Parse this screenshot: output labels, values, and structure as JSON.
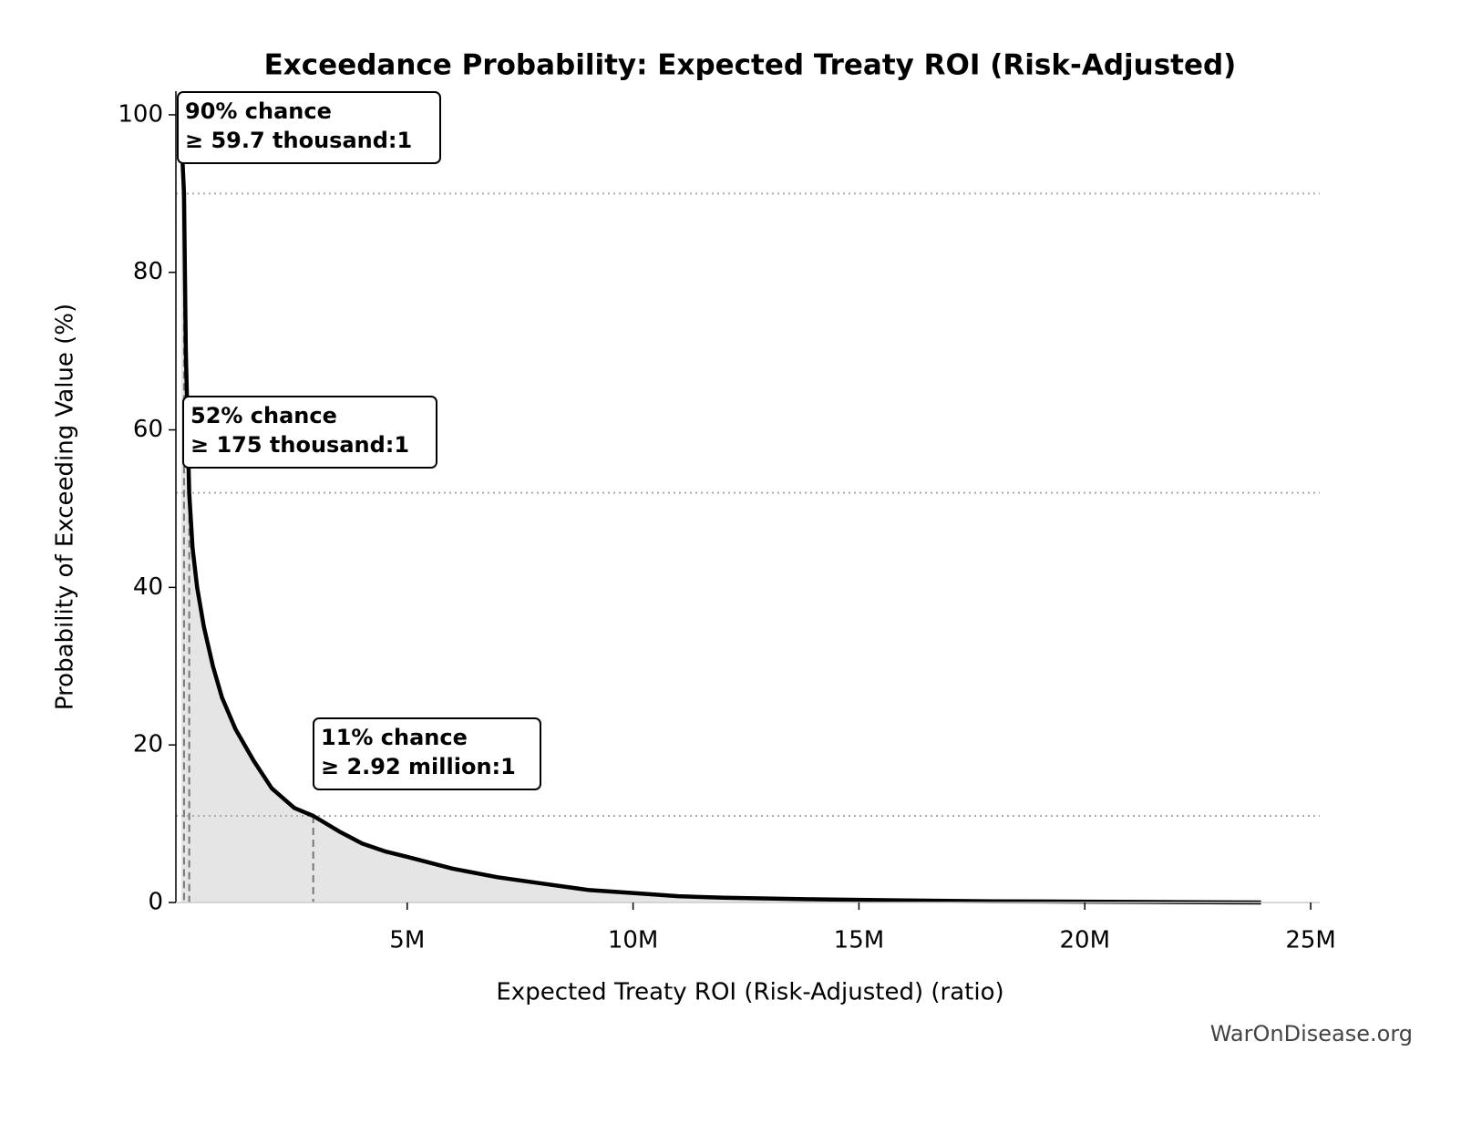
{
  "chart_data": {
    "type": "line",
    "title": "Exceedance Probability: Expected Treaty ROI (Risk-Adjusted)",
    "x_label": "Expected Treaty ROI (Risk-Adjusted) (ratio)",
    "y_label": "Probability of Exceeding Value (%)",
    "watermark": "WarOnDisease.org",
    "series": [
      {
        "color": "#000000",
        "fill": "#e5e5e5",
        "x": [
          0,
          20000,
          59700,
          100000,
          175000,
          250000,
          350000,
          500000,
          700000,
          900000,
          1200000,
          1600000,
          2000000,
          2500000,
          2920000,
          3500000,
          4000000,
          4500000,
          5000000,
          6000000,
          7000000,
          8000000,
          9000000,
          10000000,
          11000000,
          12000000,
          14000000,
          16000000,
          18000000,
          20000000,
          22000000,
          23900000
        ],
        "values": [
          100,
          95,
          90,
          70,
          52,
          45,
          40,
          35,
          30,
          26,
          22,
          18,
          14.5,
          12,
          11,
          9,
          7.5,
          6.5,
          5.8,
          4.3,
          3.2,
          2.4,
          1.6,
          1.2,
          0.8,
          0.6,
          0.4,
          0.25,
          0.15,
          0.1,
          0.05,
          0
        ]
      }
    ],
    "annotations": [
      {
        "lines": [
          "90% chance",
          "≥ 59.7 thousand:1"
        ],
        "x": 59700,
        "y": 90
      },
      {
        "lines": [
          "52% chance",
          "≥ 175 thousand:1"
        ],
        "x": 175000,
        "y": 52
      },
      {
        "lines": [
          "11% chance",
          "≥ 2.92 million:1"
        ],
        "x": 2920000,
        "y": 11
      }
    ],
    "xlim": [
      -120000,
      25200000
    ],
    "ylim": [
      0,
      103
    ],
    "xticks": [
      {
        "value": 5000000,
        "label": "5M"
      },
      {
        "value": 10000000,
        "label": "10M"
      },
      {
        "value": 15000000,
        "label": "15M"
      },
      {
        "value": 20000000,
        "label": "20M"
      },
      {
        "value": 25000000,
        "label": "25M"
      }
    ],
    "yticks": [
      0,
      20,
      40,
      60,
      80,
      100
    ]
  }
}
